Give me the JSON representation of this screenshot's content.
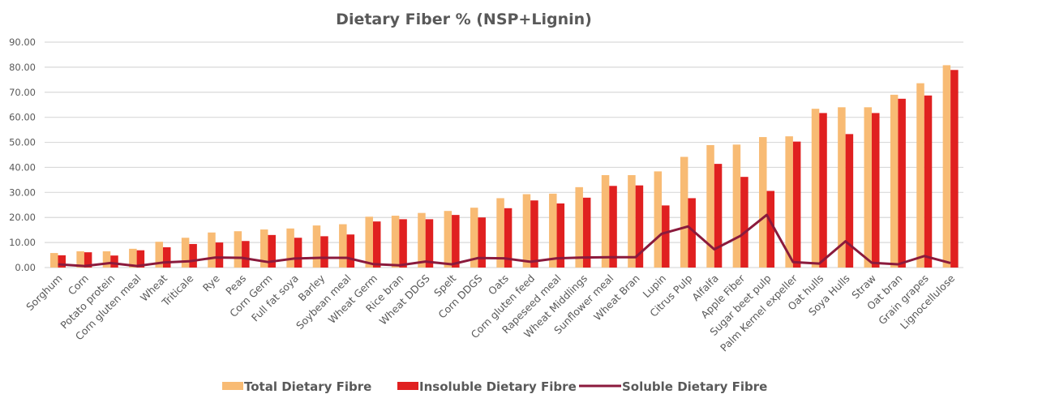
{
  "chart_data": {
    "type": "bar",
    "title": "Dietary Fiber % (NSP+Lignin)",
    "xlabel": "",
    "ylabel": "",
    "ylim": [
      0,
      90
    ],
    "yticks": [
      "0.00",
      "10.00",
      "20.00",
      "30.00",
      "40.00",
      "50.00",
      "60.00",
      "70.00",
      "80.00",
      "90.00"
    ],
    "grid": true,
    "legend_position": "bottom",
    "categories": [
      "Sorghum",
      "Corn",
      "Potato protein",
      "Corn gluten meal",
      "Wheat",
      "Triticale",
      "Rye",
      "Peas",
      "Corn Germ",
      "Full fat soya",
      "Barley",
      "Soybean meal",
      "Wheat Germ",
      "Rice bran",
      "Wheat DDGS",
      "Spelt",
      "Corn DDGS",
      "Oats",
      "Corn gluten feed",
      "Rapeseed meal",
      "Wheat Middlings",
      "Sunflower meal",
      "Wheat Bran",
      "Lupin",
      "Citrus Pulp",
      "Alfalfa",
      "Apple Fiber",
      "Sugar beet pulp",
      "Palm Kernel expeller",
      "Oat hulls",
      "Soya Hulls",
      "Straw",
      "Oat bran",
      "Grain grapes",
      "Lignocellulose"
    ],
    "series": [
      {
        "name": "Total Dietary Fibre",
        "type": "bar",
        "color": "#f8bb74",
        "values": [
          5.8,
          6.5,
          6.5,
          7.5,
          10.3,
          11.9,
          14.0,
          14.5,
          15.2,
          15.6,
          16.8,
          17.3,
          20.3,
          20.7,
          21.8,
          22.6,
          23.9,
          27.7,
          29.3,
          29.5,
          32.1,
          36.9,
          36.9,
          38.4,
          44.2,
          48.9,
          49.1,
          52.1,
          52.4,
          63.4,
          64.0,
          64.0,
          69.0,
          73.6,
          80.8
        ]
      },
      {
        "name": "Insoluble Dietary Fibre",
        "type": "bar",
        "color": "#e02020",
        "values": [
          4.9,
          6.1,
          4.8,
          6.9,
          8.1,
          9.4,
          10.0,
          10.6,
          13.0,
          11.9,
          12.5,
          13.2,
          18.4,
          19.3,
          19.3,
          21.0,
          20.0,
          23.7,
          26.8,
          25.6,
          27.9,
          32.6,
          32.8,
          24.8,
          27.7,
          41.4,
          36.2,
          30.6,
          50.3,
          61.7,
          53.3,
          61.7,
          67.4,
          68.7,
          78.9
        ]
      },
      {
        "name": "Soluble Dietary Fibre",
        "type": "line",
        "color": "#8b1a3c",
        "values": [
          1.3,
          0.6,
          1.8,
          0.6,
          2.0,
          2.5,
          4.0,
          3.9,
          2.2,
          3.6,
          3.9,
          3.9,
          1.4,
          0.9,
          2.4,
          1.3,
          3.8,
          3.7,
          2.3,
          3.7,
          4.0,
          4.1,
          4.1,
          13.5,
          16.4,
          7.3,
          12.7,
          21.0,
          2.2,
          1.6,
          10.5,
          1.9,
          1.3,
          4.6,
          1.8
        ]
      }
    ]
  }
}
